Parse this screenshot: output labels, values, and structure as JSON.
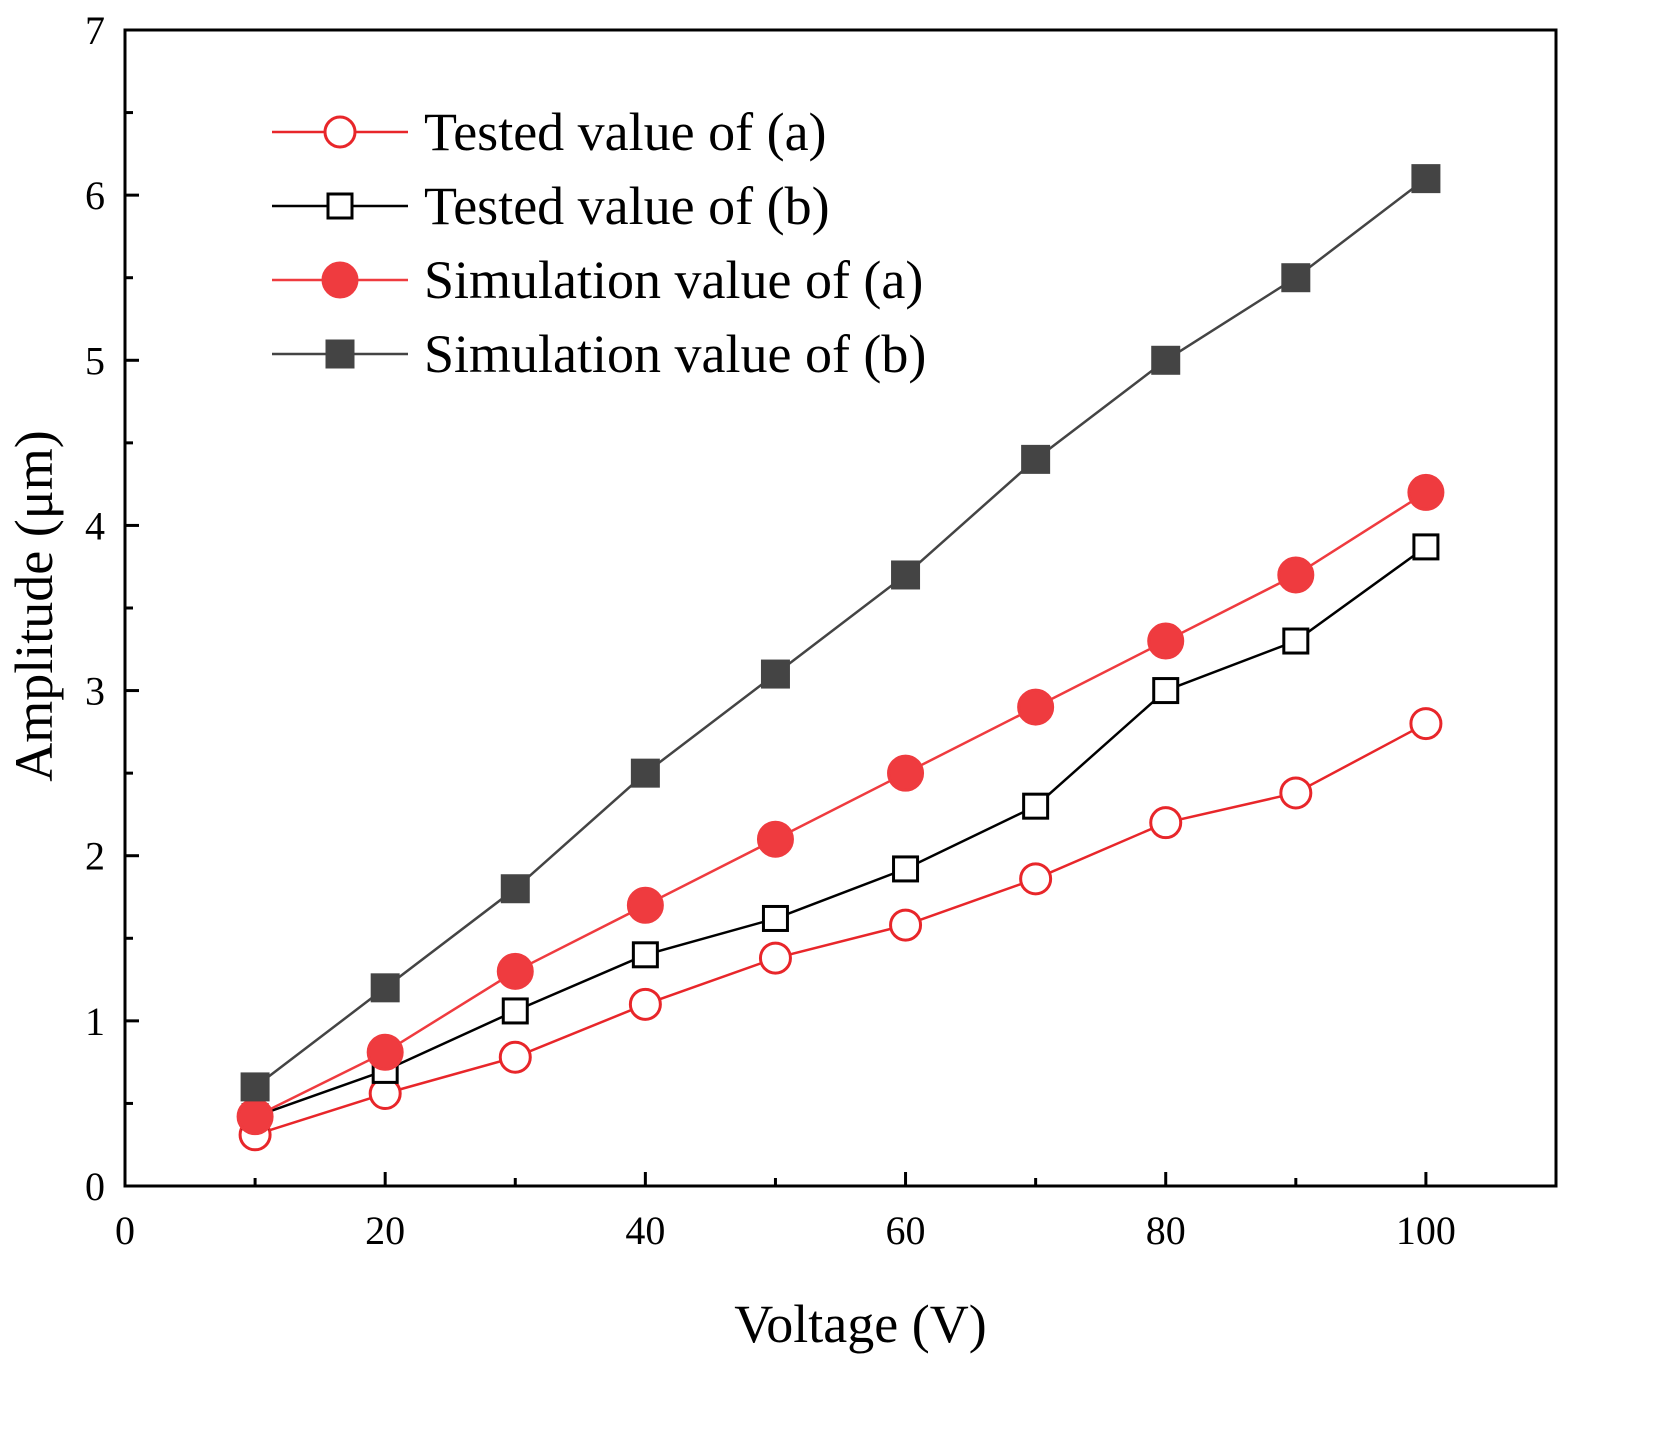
{
  "chart_data": {
    "type": "line",
    "title": "",
    "xlabel": "Voltage (V)",
    "ylabel": "Amplitude (μm)",
    "xlim": [
      0,
      110
    ],
    "ylim": [
      0,
      7
    ],
    "xticks": [
      0,
      20,
      40,
      60,
      80,
      100
    ],
    "yticks": [
      0,
      1,
      2,
      3,
      4,
      5,
      6,
      7
    ],
    "xtick_labels": [
      "0",
      "20",
      "40",
      "60",
      "80",
      "100"
    ],
    "ytick_labels": [
      "0",
      "1",
      "2",
      "3",
      "4",
      "5",
      "6",
      "7"
    ],
    "grid": false,
    "legend_position": "top-left",
    "x": [
      10,
      20,
      30,
      40,
      50,
      60,
      70,
      80,
      90,
      100
    ],
    "series": [
      {
        "name": "Tested value of (a)",
        "values": [
          0.31,
          0.56,
          0.78,
          1.1,
          1.38,
          1.58,
          1.86,
          2.2,
          2.38,
          2.8
        ],
        "color": "#e8262a",
        "marker": "circle",
        "filled": false
      },
      {
        "name": "Tested value of (b)",
        "values": [
          0.42,
          0.7,
          1.06,
          1.4,
          1.62,
          1.92,
          2.3,
          3.0,
          3.3,
          3.87
        ],
        "color": "#000000",
        "marker": "square",
        "filled": false
      },
      {
        "name": "Simulation value of (a)",
        "values": [
          0.42,
          0.81,
          1.3,
          1.7,
          2.1,
          2.5,
          2.9,
          3.3,
          3.7,
          4.2
        ],
        "color": "#ef3b3f",
        "marker": "circle",
        "filled": true
      },
      {
        "name": "Simulation value of (b)",
        "values": [
          0.6,
          1.2,
          1.8,
          2.5,
          3.1,
          3.7,
          4.4,
          5.0,
          5.5,
          6.1
        ],
        "color": "#444444",
        "marker": "square",
        "filled": true
      }
    ]
  }
}
